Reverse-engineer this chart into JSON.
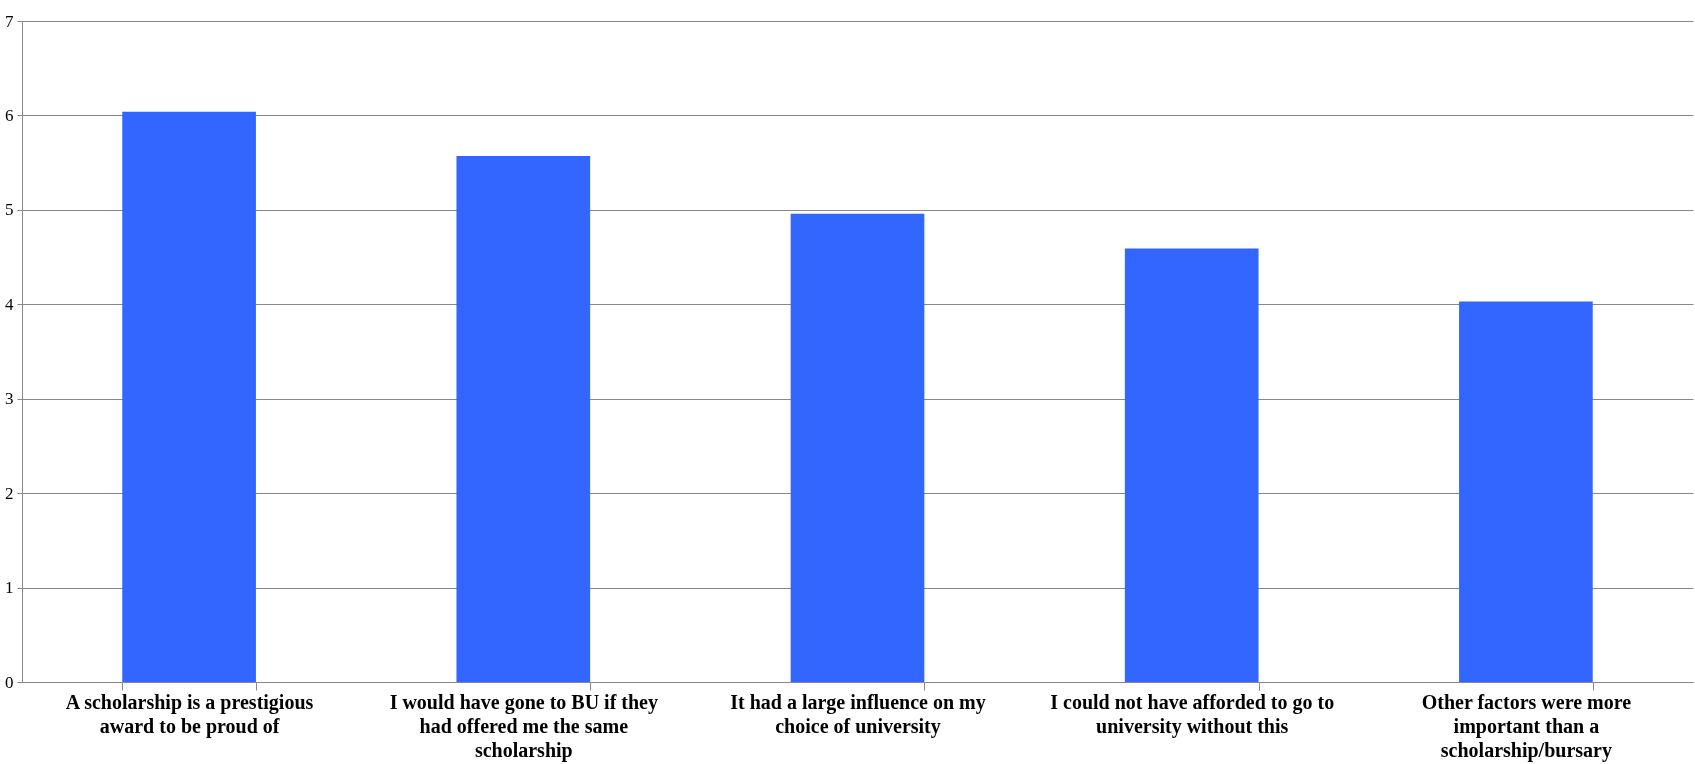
{
  "chart_data": {
    "type": "bar",
    "categories": [
      "A scholarship is a prestigious award to be proud of",
      "I would have gone to BU if they had offered me the same scholarship",
      "It had a large influence on my choice of university",
      "I could not have afforded to go to university without this",
      "Other factors were more important than a scholarship/bursary"
    ],
    "values": [
      6.04,
      5.57,
      4.96,
      4.59,
      4.03
    ],
    "color": "#3366ff",
    "ylim": [
      0,
      7
    ],
    "yticks": [
      0,
      1,
      2,
      3,
      4,
      5,
      6,
      7
    ],
    "grid": "y"
  }
}
